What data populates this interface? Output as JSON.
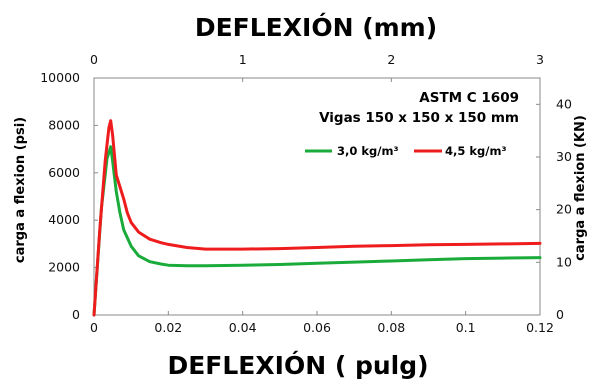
{
  "chart_data": {
    "type": "line",
    "top_axis_label": "DEFLEXIÓN (mm)",
    "xlabel": "DEFLEXIÓN ( pulg)",
    "ylabel": "carga a flexion (psi)",
    "y2label": "carga a flexion (KN)",
    "annotation_line1": "ASTM C 1609",
    "annotation_line2": "Vigas 150 x 150 x 150 mm",
    "xlim": [
      0,
      0.12
    ],
    "ylim": [
      0,
      10000
    ],
    "x2lim": [
      0,
      3
    ],
    "y2lim": [
      0,
      45
    ],
    "x_ticks": [
      "0",
      "0.02",
      "0.04",
      "0.06",
      "0.08",
      "0.1",
      "0.12"
    ],
    "y_ticks": [
      "0",
      "2000",
      "4000",
      "6000",
      "8000",
      "10000"
    ],
    "x2_ticks": [
      "0",
      "1",
      "2",
      "3"
    ],
    "y2_ticks": [
      "0",
      "10",
      "20",
      "30",
      "40"
    ],
    "grid": false,
    "legend_position": "top-right",
    "series": [
      {
        "name": "3,0 kg/m³",
        "color": "#1aab3a",
        "x": [
          0,
          0.002,
          0.0035,
          0.0045,
          0.005,
          0.006,
          0.007,
          0.008,
          0.01,
          0.012,
          0.015,
          0.018,
          0.02,
          0.025,
          0.03,
          0.04,
          0.05,
          0.06,
          0.07,
          0.08,
          0.09,
          0.1,
          0.11,
          0.12
        ],
        "y": [
          0,
          4500,
          6600,
          7100,
          6500,
          5200,
          4300,
          3600,
          2900,
          2500,
          2250,
          2150,
          2100,
          2080,
          2080,
          2100,
          2130,
          2180,
          2230,
          2280,
          2330,
          2380,
          2400,
          2420
        ]
      },
      {
        "name": "4,5 kg/m³",
        "color": "#ee1c1c",
        "x": [
          0,
          0.0015,
          0.003,
          0.004,
          0.0045,
          0.005,
          0.006,
          0.007,
          0.008,
          0.009,
          0.01,
          0.012,
          0.015,
          0.018,
          0.02,
          0.025,
          0.03,
          0.04,
          0.05,
          0.06,
          0.07,
          0.08,
          0.09,
          0.1,
          0.11,
          0.12
        ],
        "y": [
          0,
          3500,
          6500,
          7900,
          8200,
          7600,
          5900,
          5400,
          4900,
          4300,
          3900,
          3500,
          3200,
          3050,
          2980,
          2850,
          2780,
          2780,
          2800,
          2850,
          2900,
          2930,
          2960,
          2980,
          3000,
          3020
        ]
      }
    ]
  }
}
